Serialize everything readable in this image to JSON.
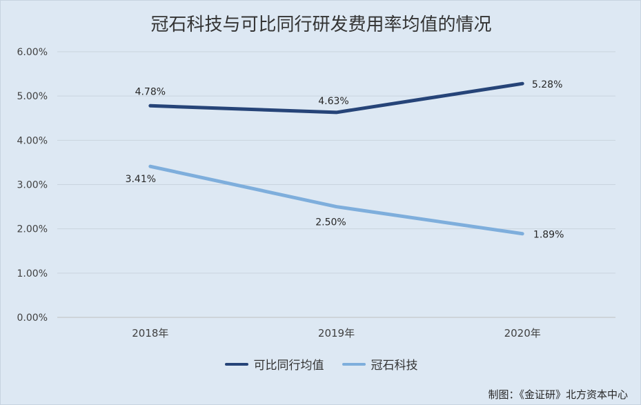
{
  "chart_data": {
    "type": "line",
    "title": "冠石科技与可比同行研发费用率均值的情况",
    "categories": [
      "2018年",
      "2019年",
      "2020年"
    ],
    "series": [
      {
        "name": "可比同行均值",
        "values": [
          4.78,
          4.63,
          5.28
        ],
        "labels": [
          "4.78%",
          "4.63%",
          "5.28%"
        ],
        "color": "#264478"
      },
      {
        "name": "冠石科技",
        "values": [
          3.41,
          2.5,
          1.89
        ],
        "labels": [
          "3.41%",
          "2.50%",
          "1.89%"
        ],
        "color": "#7eaedc"
      }
    ],
    "y_ticks": [
      "0.00%",
      "1.00%",
      "2.00%",
      "3.00%",
      "4.00%",
      "5.00%",
      "6.00%"
    ],
    "ylim": [
      0,
      6
    ],
    "grid": true,
    "legend_position": "bottom"
  },
  "source_note": "制图：《金证研》北方资本中心"
}
